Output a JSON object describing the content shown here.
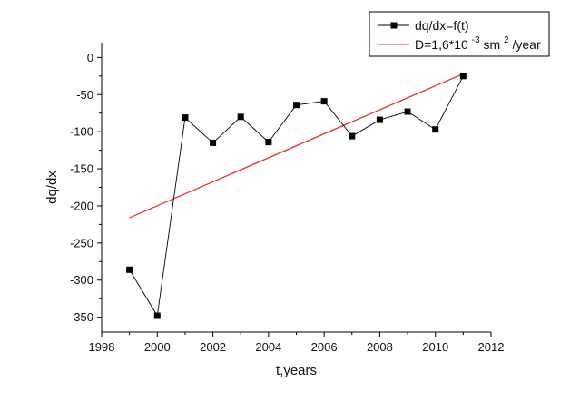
{
  "chart_data": {
    "type": "line",
    "title": "",
    "xlabel": "t,years",
    "ylabel": "dq/dx",
    "xlim": [
      1998,
      2012
    ],
    "ylim": [
      -370,
      20
    ],
    "x_ticks": [
      1998,
      2000,
      2002,
      2004,
      2006,
      2008,
      2010,
      2012
    ],
    "y_ticks": [
      0,
      -50,
      -100,
      -150,
      -200,
      -250,
      -300,
      -350
    ],
    "grid": false,
    "legend_position": "top-right",
    "series": [
      {
        "name": "dq/dx=f(t)",
        "style": "line-with-square-markers",
        "color": "#000000",
        "points": [
          {
            "x": 1999,
            "y": -286
          },
          {
            "x": 2000,
            "y": -348
          },
          {
            "x": 2001,
            "y": -81
          },
          {
            "x": 2002,
            "y": -115
          },
          {
            "x": 2003,
            "y": -80
          },
          {
            "x": 2004,
            "y": -114
          },
          {
            "x": 2005,
            "y": -64
          },
          {
            "x": 2006,
            "y": -59
          },
          {
            "x": 2007,
            "y": -106
          },
          {
            "x": 2008,
            "y": -84
          },
          {
            "x": 2009,
            "y": -73
          },
          {
            "x": 2010,
            "y": -97
          },
          {
            "x": 2011,
            "y": -25
          }
        ]
      },
      {
        "name_parts": {
          "prefix": "D=1,6*10",
          "exp1": "-3",
          "mid": " sm",
          "exp2": "2",
          "suffix": "/year"
        },
        "style": "line",
        "color": "#e8302a",
        "points": [
          {
            "x": 1999,
            "y": -216
          },
          {
            "x": 2011,
            "y": -22
          }
        ]
      }
    ]
  }
}
